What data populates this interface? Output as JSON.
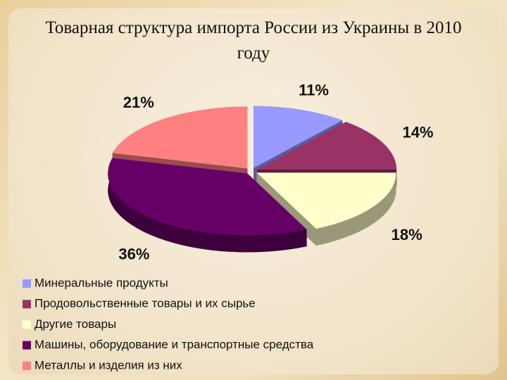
{
  "chart_data": {
    "type": "pie",
    "title": "Товарная структура импорта России из Украины в 2010 году",
    "categories": [
      "Минеральные продукты",
      "Продовольственные товары и их сырье",
      "Другие товары",
      "Машины, оборудование и транспортные средства",
      "Металлы и изделия из них"
    ],
    "values": [
      11,
      14,
      18,
      36,
      21
    ],
    "value_labels": [
      "11%",
      "14%",
      "18%",
      "36%",
      "21%"
    ],
    "colors": [
      "#9999ff",
      "#993366",
      "#ffffcc",
      "#660066",
      "#ff8080"
    ]
  }
}
